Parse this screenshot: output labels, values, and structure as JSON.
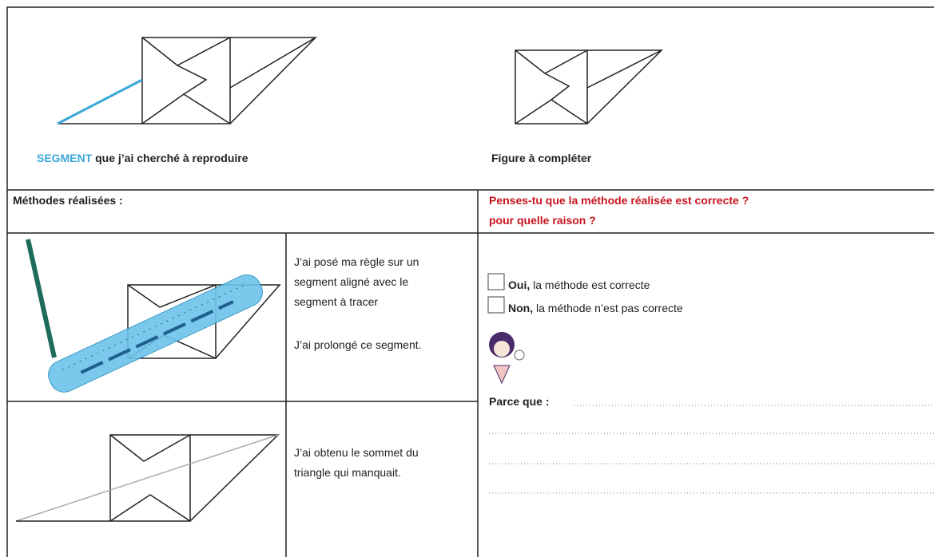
{
  "top": {
    "segment_word": "SEGMENT",
    "segment_caption": " que j’ai cherché à reproduire",
    "figure_caption": "Figure à compléter"
  },
  "methods": {
    "header": "Méthodes réalisées :",
    "rows": [
      {
        "lines": [
          "J’ai posé ma règle sur un",
          "segment aligné avec le",
          "segment à tracer",
          "J’ai prolongé ce segment."
        ]
      },
      {
        "lines": [
          "J’ai obtenu le sommet du",
          "triangle qui manquait."
        ]
      }
    ]
  },
  "question": {
    "lines": [
      "Penses-tu que la méthode réalisée est correcte ?",
      "pour quelle raison ?"
    ]
  },
  "answers": {
    "options": [
      {
        "bold": "Oui,",
        "text": " la méthode est correcte"
      },
      {
        "bold": "Non,",
        "text": " la méthode n’est pas correcte"
      }
    ],
    "because": "Parce que :"
  }
}
